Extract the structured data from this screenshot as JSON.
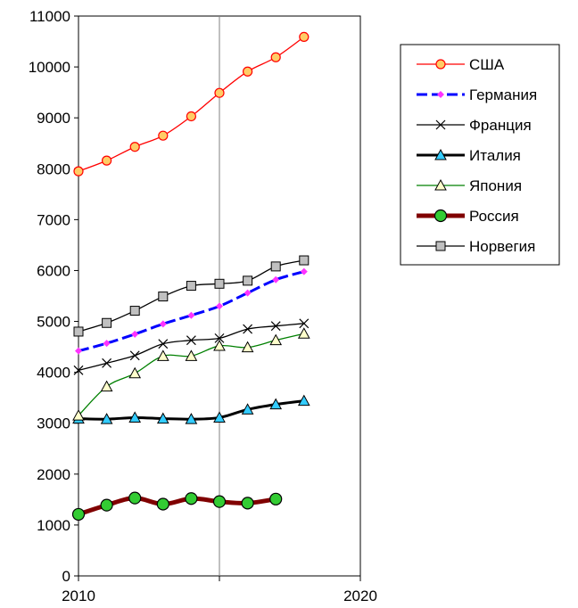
{
  "chart_data": {
    "type": "line",
    "title": "",
    "xlabel": "",
    "ylabel": "",
    "xlim": [
      2010,
      2020
    ],
    "ylim": [
      0,
      11000
    ],
    "x_ticks": [
      "2010",
      "2020"
    ],
    "y_ticks": [
      "0",
      "1000",
      "2000",
      "3000",
      "4000",
      "5000",
      "6000",
      "7000",
      "8000",
      "9000",
      "10000",
      "11000"
    ],
    "grid": "vertical gridline at 2015",
    "legend_position": "right",
    "series": [
      {
        "name": "США",
        "color": "#ff0000",
        "marker": "circle",
        "marker_fill": "#ffcc66",
        "x": [
          2010,
          2011,
          2012,
          2013,
          2014,
          2015,
          2016,
          2017,
          2018
        ],
        "values": [
          7950,
          8160,
          8430,
          8650,
          9030,
          9490,
          9910,
          10190,
          10590
        ]
      },
      {
        "name": "Германия",
        "color": "#0000ff",
        "marker": "diamond",
        "marker_fill": "#ff33ff",
        "dashed": true,
        "x": [
          2010,
          2011,
          2012,
          2013,
          2014,
          2015,
          2016,
          2017,
          2018
        ],
        "values": [
          4420,
          4570,
          4750,
          4950,
          5120,
          5300,
          5560,
          5820,
          5980
        ]
      },
      {
        "name": "Франция",
        "color": "#000000",
        "marker": "x",
        "marker_fill": "#000000",
        "x": [
          2010,
          2011,
          2012,
          2013,
          2014,
          2015,
          2016,
          2017,
          2018
        ],
        "values": [
          4040,
          4180,
          4330,
          4560,
          4630,
          4670,
          4850,
          4910,
          4960
        ]
      },
      {
        "name": "Италия",
        "color": "#000000",
        "marker": "triangle",
        "marker_fill": "#33ccff",
        "thick": true,
        "x": [
          2010,
          2011,
          2012,
          2013,
          2014,
          2015,
          2016,
          2017,
          2018
        ],
        "values": [
          3090,
          3080,
          3110,
          3090,
          3080,
          3110,
          3270,
          3370,
          3440
        ]
      },
      {
        "name": "Япония",
        "color": "#008000",
        "marker": "triangle",
        "marker_fill": "#ffffcc",
        "x": [
          2010,
          2011,
          2012,
          2013,
          2014,
          2015,
          2016,
          2017,
          2018
        ],
        "values": [
          3150,
          3720,
          3980,
          4320,
          4320,
          4520,
          4490,
          4630,
          4760
        ]
      },
      {
        "name": "Россия",
        "color": "#800000",
        "marker": "circle",
        "marker_fill": "#33cc33",
        "thick": true,
        "x": [
          2010,
          2011,
          2012,
          2013,
          2014,
          2015,
          2016,
          2017
        ],
        "values": [
          1210,
          1390,
          1530,
          1410,
          1520,
          1460,
          1430,
          1510
        ]
      },
      {
        "name": "Норвегия",
        "color": "#000000",
        "marker": "square",
        "marker_fill": "#c0c0c0",
        "x": [
          2010,
          2011,
          2012,
          2013,
          2014,
          2015,
          2016,
          2017,
          2018
        ],
        "values": [
          4800,
          4970,
          5210,
          5490,
          5700,
          5740,
          5800,
          6080,
          6200
        ]
      }
    ]
  }
}
